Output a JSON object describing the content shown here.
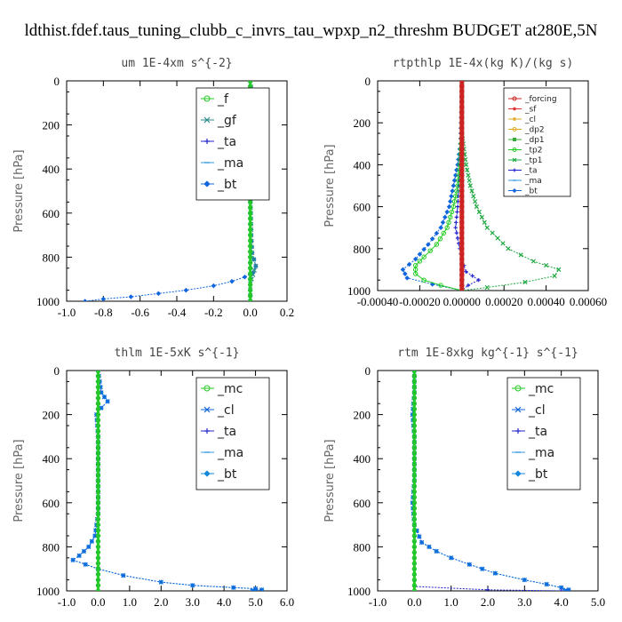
{
  "figure_title": "ldthist.fdef.taus_tuning_clubb_c_invrs_tau_wpxp_n2_threshm  BUDGET at280E,5N",
  "chart_data": [
    {
      "type": "line",
      "title": "um   1E-4xm s^{-2}",
      "ylabel": "Pressure [hPa]",
      "xlim": [
        -1.0,
        0.2
      ],
      "ylim": [
        1000,
        0
      ],
      "xticks": [
        "-1.0",
        "-0.8",
        "-0.6",
        "-0.4",
        "-0.2",
        "0.0",
        "0.2"
      ],
      "xtick_values": [
        -1.0,
        -0.8,
        -0.6,
        -0.4,
        -0.2,
        0.0,
        0.2
      ],
      "yticks": [
        0,
        200,
        400,
        600,
        800,
        1000
      ],
      "legend": "upper-right-large",
      "series": [
        {
          "name": "_f",
          "color": "#22cc22",
          "marker": "circle",
          "points": [
            [
              0,
              0
            ],
            [
              0,
              100
            ],
            [
              0,
              200
            ],
            [
              0,
              300
            ],
            [
              0,
              400
            ],
            [
              0,
              500
            ],
            [
              0,
              600
            ],
            [
              0,
              700
            ],
            [
              0,
              800
            ],
            [
              0,
              900
            ],
            [
              0,
              1000
            ]
          ]
        },
        {
          "name": "_gf",
          "color": "#2a8a8a",
          "marker": "x",
          "points": [
            [
              0,
              0
            ],
            [
              0.01,
              80
            ],
            [
              0.03,
              140
            ],
            [
              0.02,
              170
            ],
            [
              0,
              200
            ],
            [
              0,
              300
            ],
            [
              0,
              500
            ],
            [
              0.005,
              700
            ],
            [
              0.01,
              780
            ],
            [
              0.03,
              840
            ],
            [
              0.015,
              880
            ],
            [
              0,
              920
            ],
            [
              0,
              1000
            ]
          ]
        },
        {
          "name": "_ta",
          "color": "#2222cc",
          "marker": "plus",
          "points": [
            [
              0,
              0
            ],
            [
              0,
              1000
            ]
          ]
        },
        {
          "name": "_ma",
          "color": "#3399dd",
          "marker": "dash",
          "points": [
            [
              0,
              0
            ],
            [
              0,
              1000
            ]
          ]
        },
        {
          "name": "_bt",
          "color": "#1166dd",
          "marker": "diamond",
          "points": [
            [
              0,
              0
            ],
            [
              0.01,
              80
            ],
            [
              0.03,
              140
            ],
            [
              0.02,
              170
            ],
            [
              -0.02,
              200
            ],
            [
              0,
              230
            ],
            [
              0,
              300
            ],
            [
              0,
              500
            ],
            [
              0.005,
              700
            ],
            [
              0.01,
              780
            ],
            [
              0.03,
              840
            ],
            [
              0.015,
              870
            ],
            [
              -0.03,
              890
            ],
            [
              -0.1,
              910
            ],
            [
              -0.2,
              930
            ],
            [
              -0.35,
              950
            ],
            [
              -0.5,
              965
            ],
            [
              -0.65,
              980
            ],
            [
              -0.8,
              990
            ],
            [
              -0.9,
              1000
            ]
          ]
        }
      ]
    },
    {
      "type": "line",
      "title": "rtpthlp   1E-4x(kg K)/(kg s)",
      "ylabel": "Pressure [hPa]",
      "xlim": [
        -0.0004,
        0.0006
      ],
      "ylim": [
        1000,
        0
      ],
      "xticks": [
        "-0.00040",
        "-0.00020",
        "0.00000",
        "0.00020",
        "0.00040",
        "0.00060"
      ],
      "xtick_values": [
        -0.0004,
        -0.0002,
        0.0,
        0.0002,
        0.0004,
        0.0006
      ],
      "yticks": [
        0,
        200,
        400,
        600,
        800,
        1000
      ],
      "legend": "upper-right-small",
      "series": [
        {
          "name": "_forcing",
          "color": "#cc2222",
          "marker": "circle",
          "points": [
            [
              0,
              0
            ],
            [
              0,
              1000
            ]
          ]
        },
        {
          "name": "_sf",
          "color": "#dd3333",
          "marker": "star",
          "points": [
            [
              0,
              0
            ],
            [
              0,
              1000
            ]
          ]
        },
        {
          "name": "_cl",
          "color": "#ddaa22",
          "marker": "star",
          "points": [
            [
              0,
              0
            ],
            [
              0,
              1000
            ]
          ]
        },
        {
          "name": "_dp2",
          "color": "#ddaa22",
          "marker": "circle",
          "points": [
            [
              0,
              0
            ],
            [
              0,
              1000
            ]
          ]
        },
        {
          "name": "_dp1",
          "color": "#33aa33",
          "marker": "square",
          "points": [
            [
              0,
              0
            ],
            [
              0,
              1000
            ]
          ]
        },
        {
          "name": "_tp2",
          "color": "#22cc22",
          "marker": "circle",
          "points": [
            [
              0,
              0
            ],
            [
              0,
              250
            ],
            [
              -1e-05,
              400
            ],
            [
              -2e-05,
              500
            ],
            [
              -4e-05,
              600
            ],
            [
              -7e-05,
              700
            ],
            [
              -0.00012,
              780
            ],
            [
              -0.00018,
              840
            ],
            [
              -0.00022,
              880
            ],
            [
              -0.00022,
              920
            ],
            [
              -0.00018,
              950
            ],
            [
              -0.0001,
              975
            ],
            [
              0,
              1000
            ]
          ]
        },
        {
          "name": "_tp1",
          "color": "#22aa44",
          "marker": "x",
          "points": [
            [
              0,
              0
            ],
            [
              0,
              250
            ],
            [
              2e-05,
              400
            ],
            [
              4e-05,
              500
            ],
            [
              7e-05,
              600
            ],
            [
              0.00012,
              700
            ],
            [
              0.00022,
              800
            ],
            [
              0.00034,
              860
            ],
            [
              0.00046,
              900
            ],
            [
              0.00044,
              930
            ],
            [
              0.0003,
              960
            ],
            [
              0.00012,
              985
            ],
            [
              0,
              1000
            ]
          ]
        },
        {
          "name": "_ta",
          "color": "#2222cc",
          "marker": "plus",
          "points": [
            [
              0,
              0
            ],
            [
              -1e-05,
              400
            ],
            [
              -2e-05,
              600
            ],
            [
              -3e-05,
              700
            ],
            [
              0,
              850
            ],
            [
              2e-05,
              910
            ],
            [
              8e-05,
              950
            ],
            [
              3e-05,
              975
            ],
            [
              0,
              1000
            ]
          ]
        },
        {
          "name": "_ma",
          "color": "#3399dd",
          "marker": "dash",
          "points": [
            [
              0,
              0
            ],
            [
              0,
              1000
            ]
          ]
        },
        {
          "name": "_bt",
          "color": "#1166dd",
          "marker": "diamond",
          "points": [
            [
              0,
              0
            ],
            [
              0,
              250
            ],
            [
              -2e-05,
              400
            ],
            [
              -4e-05,
              500
            ],
            [
              -6e-05,
              600
            ],
            [
              -0.0001,
              700
            ],
            [
              -0.00016,
              780
            ],
            [
              -0.00022,
              850
            ],
            [
              -0.00028,
              900
            ],
            [
              -0.00026,
              940
            ],
            [
              -0.00014,
              970
            ],
            [
              0,
              1000
            ]
          ]
        }
      ]
    },
    {
      "type": "line",
      "title": "thlm   1E-5xK s^{-1}",
      "ylabel": "Pressure [hPa]",
      "xlim": [
        -1.0,
        6.0
      ],
      "ylim": [
        1000,
        0
      ],
      "xticks": [
        "-1.0",
        "0.0",
        "1.0",
        "2.0",
        "3.0",
        "4.0",
        "5.0",
        "6.0"
      ],
      "xtick_values": [
        -1.0,
        0.0,
        1.0,
        2.0,
        3.0,
        4.0,
        5.0,
        6.0
      ],
      "yticks": [
        0,
        200,
        400,
        600,
        800,
        1000
      ],
      "legend": "upper-right-large",
      "series": [
        {
          "name": "_mc",
          "color": "#22cc22",
          "marker": "circle",
          "points": [
            [
              0,
              0
            ],
            [
              0,
              1000
            ]
          ]
        },
        {
          "name": "_cl",
          "color": "#1166dd",
          "marker": "x",
          "points": [
            [
              0,
              0
            ],
            [
              0.1,
              100
            ],
            [
              0.3,
              140
            ],
            [
              0.1,
              170
            ],
            [
              -0.05,
              200
            ],
            [
              0,
              300
            ],
            [
              0,
              500
            ],
            [
              0,
              650
            ],
            [
              -0.1,
              750
            ],
            [
              -0.3,
              800
            ],
            [
              -0.6,
              840
            ],
            [
              -0.8,
              860
            ],
            [
              -0.4,
              880
            ],
            [
              0,
              900
            ],
            [
              0.8,
              930
            ],
            [
              2,
              960
            ],
            [
              3,
              975
            ],
            [
              4.3,
              985
            ],
            [
              5,
              990
            ],
            [
              5.2,
              995
            ],
            [
              4.9,
              1000
            ]
          ]
        },
        {
          "name": "_ta",
          "color": "#2222cc",
          "marker": "plus",
          "points": [
            [
              0,
              0
            ],
            [
              0,
              1000
            ]
          ]
        },
        {
          "name": "_ma",
          "color": "#3399dd",
          "marker": "dash",
          "points": [
            [
              0,
              0
            ],
            [
              0,
              1000
            ]
          ]
        },
        {
          "name": "_bt",
          "color": "#1188dd",
          "marker": "diamond",
          "points": [
            [
              0,
              0
            ],
            [
              0.1,
              100
            ],
            [
              0.3,
              140
            ],
            [
              0.1,
              170
            ],
            [
              -0.05,
              200
            ],
            [
              0,
              300
            ],
            [
              0,
              500
            ],
            [
              0,
              650
            ],
            [
              -0.1,
              750
            ],
            [
              -0.3,
              800
            ],
            [
              -0.6,
              840
            ],
            [
              -0.8,
              860
            ],
            [
              -0.4,
              880
            ],
            [
              0,
              900
            ],
            [
              0.8,
              930
            ],
            [
              2,
              960
            ],
            [
              3,
              975
            ],
            [
              4.3,
              985
            ],
            [
              5,
              990
            ],
            [
              5.2,
              995
            ],
            [
              4.9,
              1000
            ]
          ]
        }
      ]
    },
    {
      "type": "line",
      "title": "rtm   1E-8xkg kg^{-1} s^{-1}",
      "ylabel": "Pressure [hPa]",
      "xlim": [
        -1.0,
        5.0
      ],
      "ylim": [
        1000,
        0
      ],
      "xticks": [
        "-1.0",
        "0.0",
        "1.0",
        "2.0",
        "3.0",
        "4.0",
        "5.0"
      ],
      "xtick_values": [
        -1.0,
        0.0,
        1.0,
        2.0,
        3.0,
        4.0,
        5.0
      ],
      "yticks": [
        0,
        200,
        400,
        600,
        800,
        1000
      ],
      "legend": "upper-right-large",
      "series": [
        {
          "name": "_mc",
          "color": "#22cc22",
          "marker": "circle",
          "points": [
            [
              0,
              0
            ],
            [
              0,
              1000
            ]
          ]
        },
        {
          "name": "_cl",
          "color": "#1166dd",
          "marker": "x",
          "points": [
            [
              0,
              0
            ],
            [
              0,
              100
            ],
            [
              -0.05,
              200
            ],
            [
              0,
              300
            ],
            [
              0,
              500
            ],
            [
              -0.05,
              600
            ],
            [
              0,
              700
            ],
            [
              0.2,
              780
            ],
            [
              0.6,
              820
            ],
            [
              1,
              850
            ],
            [
              1.5,
              880
            ],
            [
              2.2,
              920
            ],
            [
              3,
              950
            ],
            [
              3.6,
              970
            ],
            [
              4,
              985
            ],
            [
              4.2,
              995
            ],
            [
              4.1,
              1000
            ]
          ]
        },
        {
          "name": "_ta",
          "color": "#2222cc",
          "marker": "plus",
          "points": [
            [
              0,
              0
            ],
            [
              0,
              980
            ],
            [
              2,
              995
            ],
            [
              4,
              1000
            ]
          ]
        },
        {
          "name": "_ma",
          "color": "#3399dd",
          "marker": "dash",
          "points": [
            [
              0,
              0
            ],
            [
              0,
              1000
            ]
          ]
        },
        {
          "name": "_bt",
          "color": "#1188dd",
          "marker": "diamond",
          "points": [
            [
              0,
              0
            ],
            [
              0,
              100
            ],
            [
              -0.05,
              200
            ],
            [
              0,
              300
            ],
            [
              0,
              500
            ],
            [
              -0.05,
              600
            ],
            [
              0,
              700
            ],
            [
              0.2,
              780
            ],
            [
              0.6,
              820
            ],
            [
              1,
              850
            ],
            [
              1.5,
              880
            ],
            [
              2.2,
              920
            ],
            [
              3,
              950
            ],
            [
              3.6,
              970
            ],
            [
              4,
              985
            ],
            [
              4.2,
              995
            ],
            [
              4.1,
              1000
            ]
          ]
        }
      ]
    }
  ]
}
